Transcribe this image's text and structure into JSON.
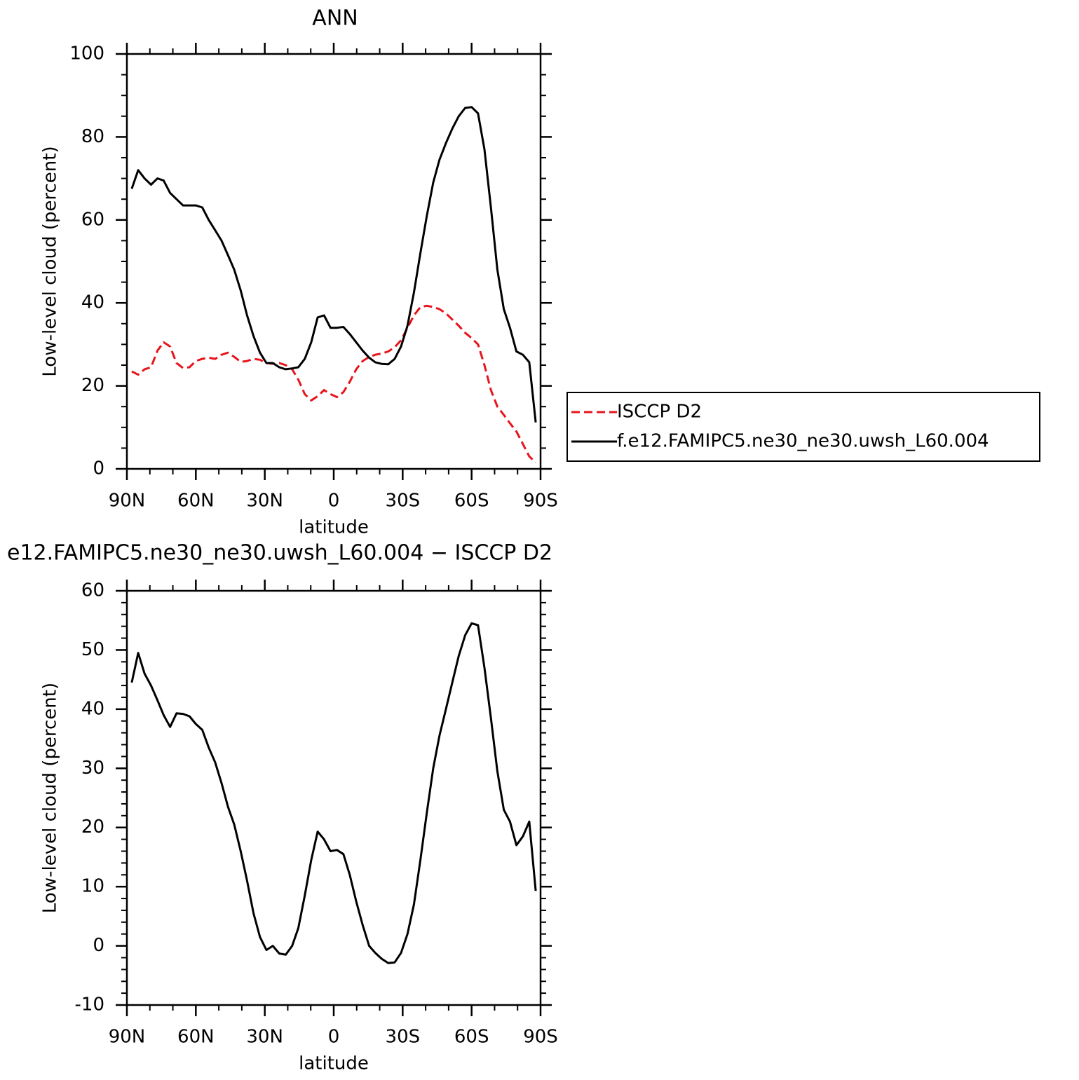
{
  "chart_data": [
    {
      "type": "line",
      "title": "ANN",
      "x_label": "latitude",
      "y_label": "Low-level cloud (percent)",
      "x": [
        87.9,
        85.1,
        82.3,
        79.5,
        76.7,
        74.0,
        71.2,
        68.4,
        65.6,
        62.8,
        60.0,
        57.2,
        54.4,
        51.6,
        48.8,
        46.0,
        43.3,
        40.5,
        37.7,
        34.9,
        32.1,
        29.3,
        26.5,
        23.7,
        20.9,
        18.1,
        15.4,
        12.6,
        9.8,
        7.0,
        4.2,
        1.4,
        -1.4,
        -4.2,
        -7.0,
        -9.8,
        -12.6,
        -15.4,
        -18.1,
        -20.9,
        -23.7,
        -26.5,
        -29.3,
        -32.1,
        -34.9,
        -37.7,
        -40.5,
        -43.3,
        -46.0,
        -48.8,
        -51.6,
        -54.4,
        -57.2,
        -60.0,
        -62.8,
        -65.6,
        -68.4,
        -71.2,
        -74.0,
        -76.7,
        -79.5,
        -82.3,
        -85.1,
        -87.9
      ],
      "series": [
        {
          "name": "ISCCP D2",
          "color": "#e8141c",
          "line_style": "dashed",
          "values": [
            23.5,
            22.7,
            24,
            24.5,
            28.5,
            30.5,
            29.5,
            25.5,
            24.3,
            24.5,
            26,
            26.5,
            26.8,
            26.5,
            27.5,
            28,
            27,
            25.8,
            26,
            26.5,
            26.3,
            25.5,
            25.3,
            25.5,
            25,
            24,
            21.5,
            18,
            16.5,
            17.5,
            19,
            18,
            17.3,
            18.5,
            21,
            24,
            26,
            27,
            27.5,
            27.8,
            28.3,
            29.3,
            31,
            34,
            37,
            39,
            39.3,
            39,
            38.5,
            37.5,
            36,
            34.5,
            32.8,
            31.5,
            30,
            25,
            19,
            15,
            13,
            11,
            9,
            6,
            3,
            1.5
          ]
        },
        {
          "name": "f.e12.FAMIPC5.ne30_ne30.uwsh_L60.004",
          "color": "#000000",
          "line_style": "solid",
          "values": [
            67.5,
            72,
            70,
            68.5,
            70,
            69.5,
            66.5,
            65,
            63.5,
            63.5,
            63.5,
            63,
            60,
            57.5,
            55,
            51.5,
            48,
            43,
            37,
            32,
            28,
            25.5,
            25.5,
            24.5,
            24,
            24.2,
            24.5,
            26.5,
            30.5,
            36.5,
            37,
            34,
            34,
            34.2,
            32.5,
            30.5,
            28.5,
            26.8,
            25.7,
            25.3,
            25.2,
            26.5,
            29.5,
            34.5,
            42.5,
            52,
            61,
            69,
            74.5,
            78.5,
            82,
            85,
            87,
            87.2,
            85.7,
            77,
            63,
            48,
            38.5,
            34,
            28.3,
            27.5,
            25.7,
            11.2
          ]
        }
      ],
      "xlim": [
        90,
        -90
      ],
      "xticks": [
        {
          "value": 90,
          "label": "90N"
        },
        {
          "value": 60,
          "label": "60N"
        },
        {
          "value": 30,
          "label": "30N"
        },
        0,
        {
          "value": -30,
          "label": "30S"
        },
        {
          "value": -60,
          "label": "60S"
        },
        {
          "value": -90,
          "label": "90S"
        }
      ],
      "xminorticks": [
        80,
        70,
        50,
        40,
        20,
        10,
        -10,
        -20,
        -40,
        -50,
        -70,
        -80
      ],
      "ylim": [
        0,
        100
      ],
      "yticks": [
        0,
        20,
        40,
        60,
        80,
        100
      ],
      "yminorticks": [
        5,
        10,
        15,
        25,
        30,
        35,
        45,
        50,
        55,
        65,
        70,
        75,
        85,
        90,
        95
      ],
      "legend": "right"
    },
    {
      "type": "line",
      "title": "e12.FAMIPC5.ne30_ne30.uwsh_L60.004 − ISCCP D2",
      "x_label": "latitude",
      "y_label": "Low-level cloud (percent)",
      "x": [
        87.9,
        85.1,
        82.3,
        79.5,
        76.7,
        74.0,
        71.2,
        68.4,
        65.6,
        62.8,
        60.0,
        57.2,
        54.4,
        51.6,
        48.8,
        46.0,
        43.3,
        40.5,
        37.7,
        34.9,
        32.1,
        29.3,
        26.5,
        23.7,
        20.9,
        18.1,
        15.4,
        12.6,
        9.8,
        7.0,
        4.2,
        1.4,
        -1.4,
        -4.2,
        -7.0,
        -9.8,
        -12.6,
        -15.4,
        -18.1,
        -20.9,
        -23.7,
        -26.5,
        -29.3,
        -32.1,
        -34.9,
        -37.7,
        -40.5,
        -43.3,
        -46.0,
        -48.8,
        -51.6,
        -54.4,
        -57.2,
        -60.0,
        -62.8,
        -65.6,
        -68.4,
        -71.2,
        -74.0,
        -76.7,
        -79.5,
        -82.3,
        -85.1,
        -87.9
      ],
      "series": [
        {
          "color": "#000000",
          "line_style": "solid",
          "values": [
            44.5,
            49.5,
            46,
            44,
            41.5,
            39,
            37,
            39.3,
            39.2,
            38.8,
            37.5,
            36.5,
            33.5,
            31,
            27.5,
            23.5,
            20.5,
            16,
            11,
            5.5,
            1.5,
            -0.7,
            0,
            -1.3,
            -1.5,
            0,
            3,
            8.5,
            14.5,
            19.3,
            18,
            16,
            16.2,
            15.5,
            12,
            7.5,
            3.5,
            0,
            -1.2,
            -2.2,
            -2.9,
            -2.8,
            -1.2,
            2,
            7,
            14.5,
            22.5,
            30,
            35.5,
            40,
            44.5,
            49,
            52.5,
            54.5,
            54.2,
            47,
            38.5,
            29.5,
            23,
            21,
            17,
            18.5,
            21,
            9.3
          ]
        }
      ],
      "xlim": [
        90,
        -90
      ],
      "xticks": [
        {
          "value": 90,
          "label": "90N"
        },
        {
          "value": 60,
          "label": "60N"
        },
        {
          "value": 30,
          "label": "30N"
        },
        0,
        {
          "value": -30,
          "label": "30S"
        },
        {
          "value": -60,
          "label": "60S"
        },
        {
          "value": -90,
          "label": "90S"
        }
      ],
      "xminorticks": [
        80,
        70,
        50,
        40,
        20,
        10,
        -10,
        -20,
        -40,
        -50,
        -70,
        -80
      ],
      "ylim": [
        -10,
        60
      ],
      "yticks": [
        -10,
        0,
        10,
        20,
        30,
        40,
        50,
        60
      ],
      "yminorticks": [
        -8,
        -6,
        -4,
        -2,
        2,
        4,
        6,
        8,
        12,
        14,
        16,
        18,
        22,
        24,
        26,
        28,
        32,
        34,
        36,
        38,
        42,
        44,
        46,
        48,
        52,
        54,
        56,
        58
      ]
    }
  ]
}
